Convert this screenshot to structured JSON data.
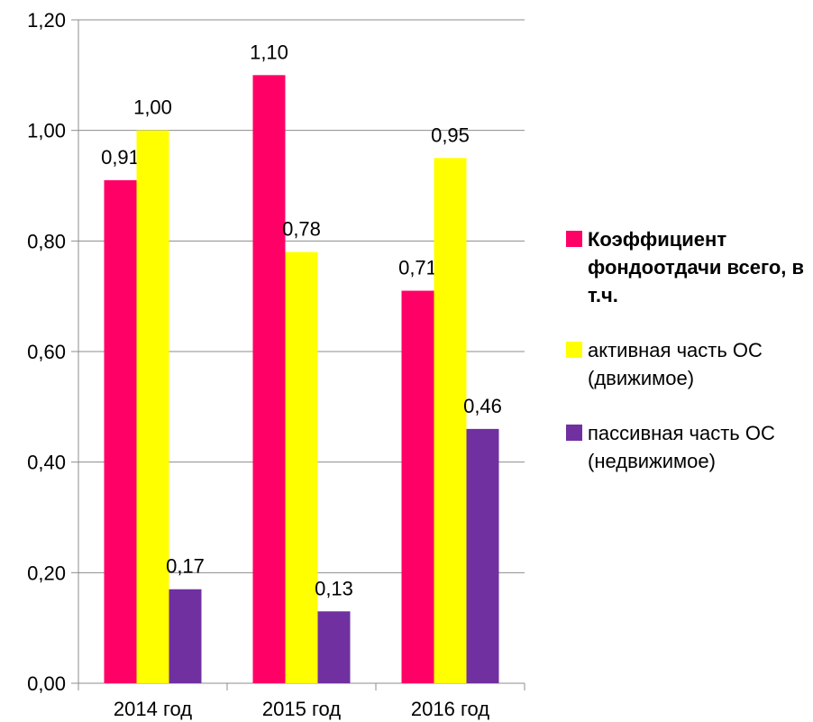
{
  "chart_data": {
    "type": "bar",
    "categories": [
      "2014 год",
      "2015 год",
      "2016 год"
    ],
    "series": [
      {
        "name": "Коэффициент фондоотдачи всего, в т.ч.",
        "values": [
          0.91,
          1.1,
          0.71
        ],
        "color": "#ff0066",
        "bold": true
      },
      {
        "name": "активная часть ОС (движимое)",
        "values": [
          1.0,
          0.78,
          0.95
        ],
        "color": "#ffff00",
        "bold": false
      },
      {
        "name": "пассивная часть ОС (недвижимое)",
        "values": [
          0.17,
          0.13,
          0.46
        ],
        "color": "#7030a0",
        "bold": false
      }
    ],
    "data_labels": [
      [
        "0,91",
        "1,10",
        "0,71"
      ],
      [
        "1,00",
        "0,78",
        "0,95"
      ],
      [
        "0,17",
        "0,13",
        "0,46"
      ]
    ],
    "y_ticks": [
      "0,00",
      "0,20",
      "0,40",
      "0,60",
      "0,80",
      "1,00",
      "1,20"
    ],
    "ylim": [
      0,
      1.2
    ],
    "grid": true,
    "legend_position": "right"
  }
}
